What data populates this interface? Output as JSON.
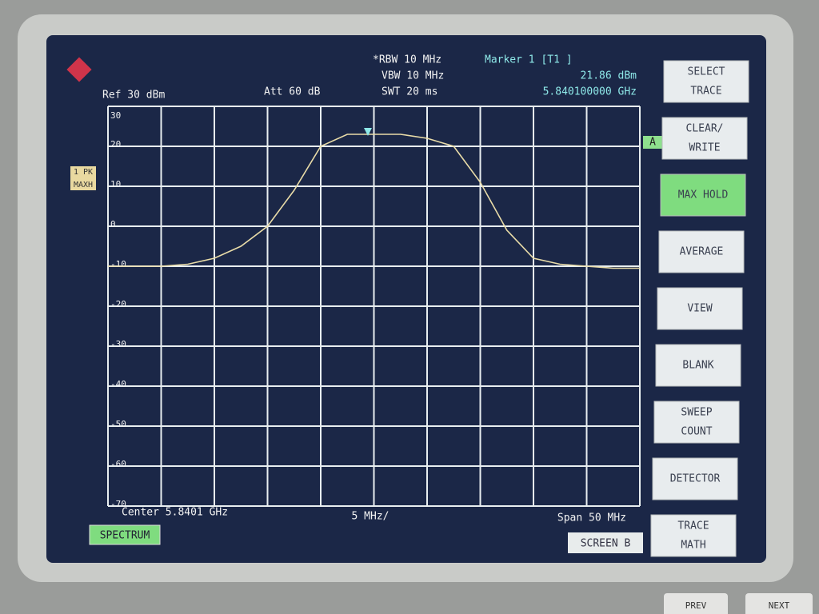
{
  "status": {
    "ref": "Ref  30 dBm",
    "att": "Att  60 dB",
    "rbw": "*RBW 10 MHz",
    "vbw": "VBW 10 MHz",
    "swt": "SWT 20 ms",
    "marker": "Marker 1 [T1 ]",
    "marker_level": "21.86 dBm",
    "marker_freq": "5.840100000 GHz",
    "trace_labels": [
      "1 PK",
      "MAXH"
    ],
    "trace_flag": "A"
  },
  "chart_data": {
    "type": "line",
    "categories": [
      null,
      null,
      null,
      null,
      null,
      null,
      null,
      null,
      null,
      null,
      null,
      null,
      null,
      null,
      null,
      null,
      null,
      null,
      null,
      null,
      null
    ],
    "values": [
      -10,
      -10,
      -10,
      -9.5,
      -8,
      -5,
      0,
      9,
      20,
      23,
      23,
      23,
      22,
      20,
      11,
      -1,
      -8,
      -9.5,
      -10,
      -10.5,
      -10.5
    ],
    "color": "#e9dca8",
    "ylim": [
      -70,
      30
    ],
    "yticks": [
      30,
      20,
      10,
      0,
      -10,
      -20,
      -30,
      -40,
      -50,
      -60,
      -70
    ],
    "grid": true,
    "center_label": "Center 5.8401 GHz",
    "div_label": "5 MHz/",
    "span_label": "Span 50 MHz"
  },
  "softkeys": [
    [
      "SELECT",
      "TRACE"
    ],
    [
      "CLEAR/",
      "WRITE"
    ],
    [
      "MAX HOLD"
    ],
    [
      "AVERAGE"
    ],
    [
      "VIEW"
    ],
    [
      "BLANK"
    ],
    [
      "SWEEP",
      "COUNT"
    ],
    [
      "DETECTOR"
    ],
    [
      "TRACE",
      "MATH"
    ]
  ],
  "bottom": {
    "mode": "SPECTRUM",
    "screen": "SCREEN B",
    "prev": "PREV",
    "next": "NEXT"
  }
}
